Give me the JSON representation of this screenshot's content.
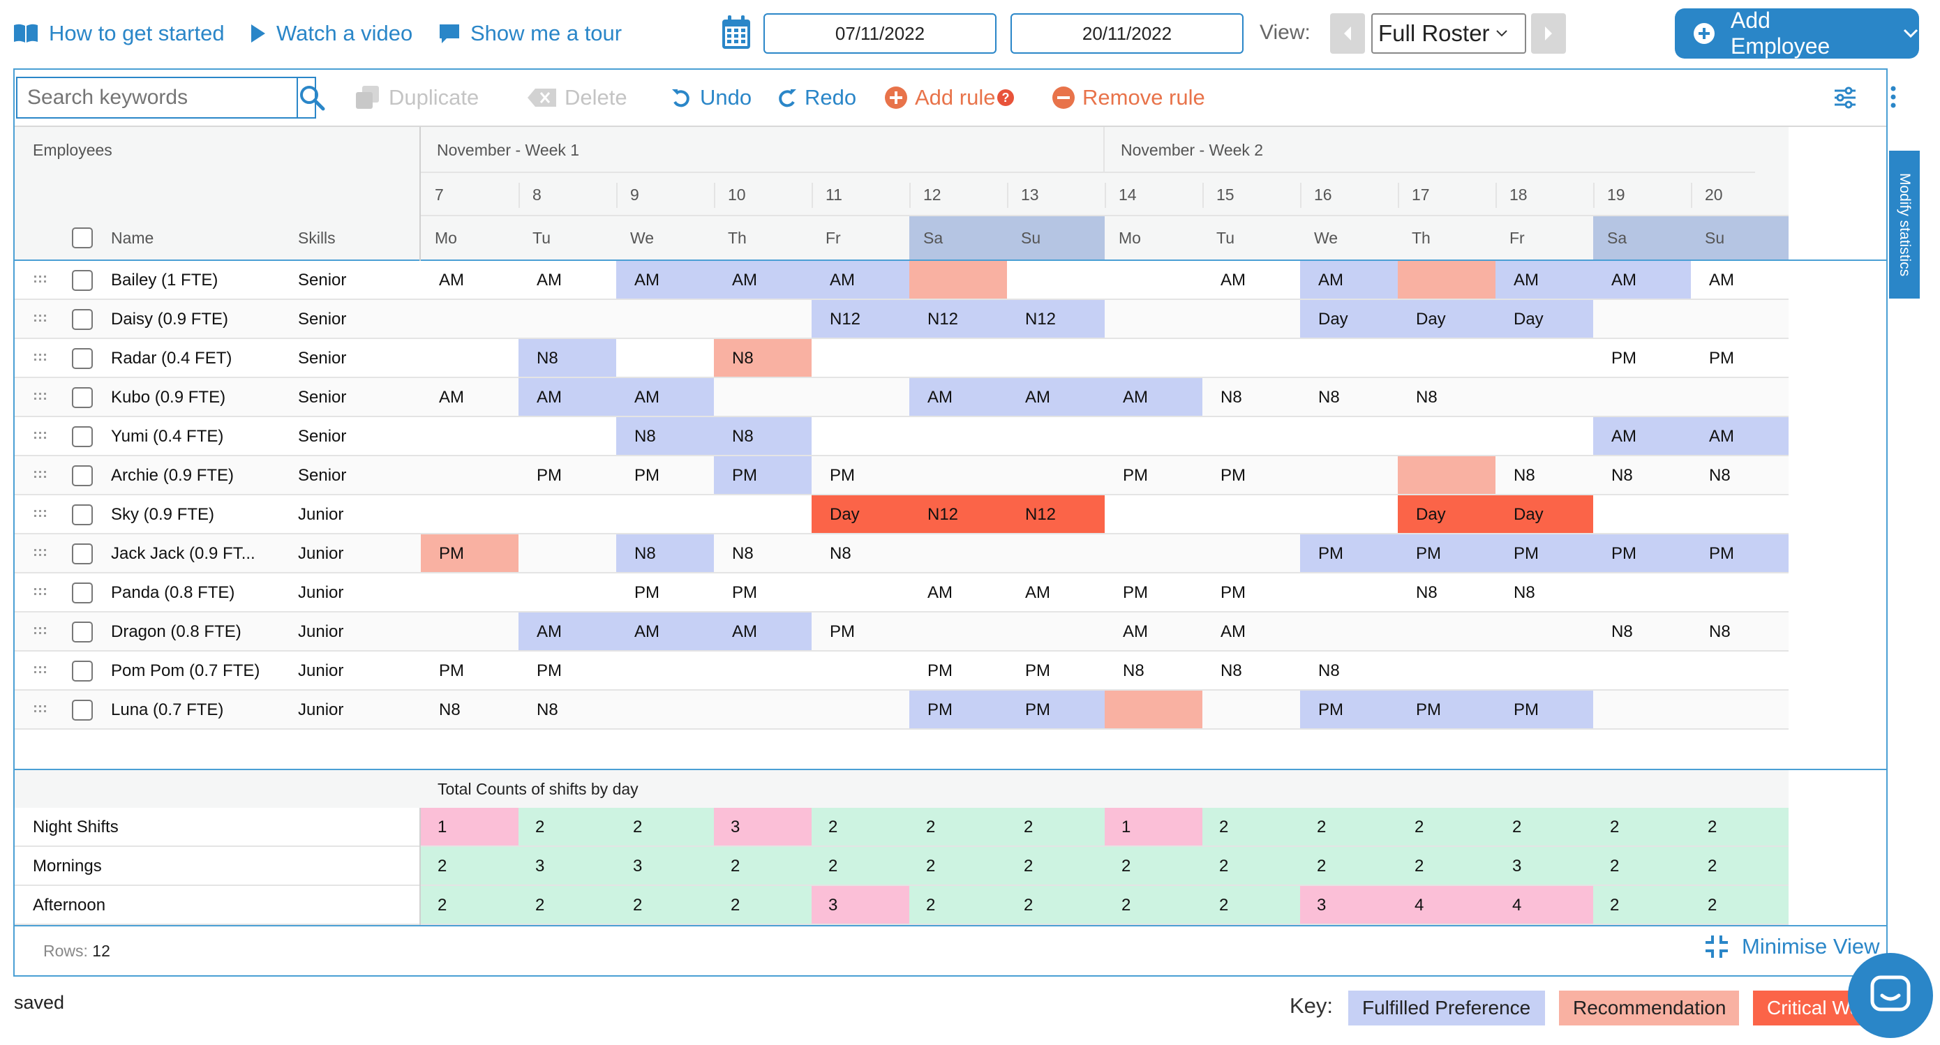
{
  "top_links": [
    {
      "label": "How to get started",
      "icon": "book-icon"
    },
    {
      "label": "Watch a video",
      "icon": "play-icon"
    },
    {
      "label": "Show me a tour",
      "icon": "chat-bubble-icon"
    }
  ],
  "date_range": {
    "start": "07/11/2022",
    "end": "20/11/2022"
  },
  "view": {
    "label": "View:",
    "selected": "Full Roster"
  },
  "add_employee_label": "Add Employee",
  "toolbar": {
    "search_placeholder": "Search keywords",
    "duplicate": "Duplicate",
    "delete": "Delete",
    "undo": "Undo",
    "redo": "Redo",
    "add_rule": "Add rule",
    "remove_rule": "Remove rule"
  },
  "grid": {
    "employees_header": "Employees",
    "name_header": "Name",
    "skills_header": "Skills",
    "weeks": [
      "November - Week 1",
      "November - Week 2"
    ],
    "days": [
      {
        "date": "7",
        "dow": "Mo",
        "weekend": false
      },
      {
        "date": "8",
        "dow": "Tu",
        "weekend": false
      },
      {
        "date": "9",
        "dow": "We",
        "weekend": false
      },
      {
        "date": "10",
        "dow": "Th",
        "weekend": false
      },
      {
        "date": "11",
        "dow": "Fr",
        "weekend": false
      },
      {
        "date": "12",
        "dow": "Sa",
        "weekend": true
      },
      {
        "date": "13",
        "dow": "Su",
        "weekend": true
      },
      {
        "date": "14",
        "dow": "Mo",
        "weekend": false
      },
      {
        "date": "15",
        "dow": "Tu",
        "weekend": false
      },
      {
        "date": "16",
        "dow": "We",
        "weekend": false
      },
      {
        "date": "17",
        "dow": "Th",
        "weekend": false
      },
      {
        "date": "18",
        "dow": "Fr",
        "weekend": false
      },
      {
        "date": "19",
        "dow": "Sa",
        "weekend": true
      },
      {
        "date": "20",
        "dow": "Su",
        "weekend": true
      }
    ],
    "rows": [
      {
        "name": "Bailey (1 FTE)",
        "skill": "Senior",
        "cells": [
          [
            "AM",
            ""
          ],
          [
            "AM",
            ""
          ],
          [
            "AM",
            "f"
          ],
          [
            "AM",
            "f"
          ],
          [
            "AM",
            "f"
          ],
          [
            "",
            "r"
          ],
          [
            "",
            ""
          ],
          [
            "",
            ""
          ],
          [
            "AM",
            ""
          ],
          [
            "AM",
            "f"
          ],
          [
            "",
            "r"
          ],
          [
            "AM",
            "f"
          ],
          [
            "AM",
            "f"
          ],
          [
            "AM",
            ""
          ]
        ]
      },
      {
        "name": "Daisy (0.9 FTE)",
        "skill": "Senior",
        "cells": [
          [
            "",
            ""
          ],
          [
            "",
            ""
          ],
          [
            "",
            ""
          ],
          [
            "",
            ""
          ],
          [
            "N12",
            "f"
          ],
          [
            "N12",
            "f"
          ],
          [
            "N12",
            "f"
          ],
          [
            "",
            ""
          ],
          [
            "",
            ""
          ],
          [
            "Day",
            "f"
          ],
          [
            "Day",
            "f"
          ],
          [
            "Day",
            "f"
          ],
          [
            "",
            ""
          ],
          [
            "",
            ""
          ]
        ]
      },
      {
        "name": "Radar (0.4 FET)",
        "skill": "Senior",
        "cells": [
          [
            "",
            ""
          ],
          [
            "N8",
            "f"
          ],
          [
            "",
            ""
          ],
          [
            "N8",
            "r"
          ],
          [
            "",
            ""
          ],
          [
            "",
            ""
          ],
          [
            "",
            ""
          ],
          [
            "",
            ""
          ],
          [
            "",
            ""
          ],
          [
            "",
            ""
          ],
          [
            "",
            ""
          ],
          [
            "",
            ""
          ],
          [
            "PM",
            ""
          ],
          [
            "PM",
            ""
          ]
        ]
      },
      {
        "name": "Kubo (0.9 FTE)",
        "skill": "Senior",
        "cells": [
          [
            "AM",
            ""
          ],
          [
            "AM",
            "f"
          ],
          [
            "AM",
            "f"
          ],
          [
            "",
            ""
          ],
          [
            "",
            ""
          ],
          [
            "AM",
            "f"
          ],
          [
            "AM",
            "f"
          ],
          [
            "AM",
            "f"
          ],
          [
            "N8",
            ""
          ],
          [
            "N8",
            ""
          ],
          [
            "N8",
            ""
          ],
          [
            "",
            ""
          ],
          [
            "",
            ""
          ],
          [
            "",
            ""
          ]
        ]
      },
      {
        "name": "Yumi (0.4 FTE)",
        "skill": "Senior",
        "cells": [
          [
            "",
            ""
          ],
          [
            "",
            ""
          ],
          [
            "N8",
            "f"
          ],
          [
            "N8",
            "f"
          ],
          [
            "",
            ""
          ],
          [
            "",
            ""
          ],
          [
            "",
            ""
          ],
          [
            "",
            ""
          ],
          [
            "",
            ""
          ],
          [
            "",
            ""
          ],
          [
            "",
            ""
          ],
          [
            "",
            ""
          ],
          [
            "AM",
            "f"
          ],
          [
            "AM",
            "f"
          ]
        ]
      },
      {
        "name": "Archie (0.9 FTE)",
        "skill": "Senior",
        "cells": [
          [
            "",
            ""
          ],
          [
            "PM",
            ""
          ],
          [
            "PM",
            ""
          ],
          [
            "PM",
            "f"
          ],
          [
            "PM",
            ""
          ],
          [
            "",
            ""
          ],
          [
            "",
            ""
          ],
          [
            "PM",
            ""
          ],
          [
            "PM",
            ""
          ],
          [
            "",
            ""
          ],
          [
            "",
            "r"
          ],
          [
            "N8",
            ""
          ],
          [
            "N8",
            ""
          ],
          [
            "N8",
            ""
          ]
        ]
      },
      {
        "name": "Sky (0.9 FTE)",
        "skill": "Junior",
        "cells": [
          [
            "",
            ""
          ],
          [
            "",
            ""
          ],
          [
            "",
            ""
          ],
          [
            "",
            ""
          ],
          [
            "Day",
            "c"
          ],
          [
            "N12",
            "c"
          ],
          [
            "N12",
            "c"
          ],
          [
            "",
            ""
          ],
          [
            "",
            ""
          ],
          [
            "",
            ""
          ],
          [
            "Day",
            "c"
          ],
          [
            "Day",
            "c"
          ],
          [
            "",
            ""
          ],
          [
            "",
            ""
          ]
        ]
      },
      {
        "name": "Jack Jack (0.9 FT...",
        "skill": "Junior",
        "cells": [
          [
            "PM",
            "r"
          ],
          [
            "",
            ""
          ],
          [
            "N8",
            "f"
          ],
          [
            "N8",
            ""
          ],
          [
            "N8",
            ""
          ],
          [
            "",
            ""
          ],
          [
            "",
            ""
          ],
          [
            "",
            ""
          ],
          [
            "",
            ""
          ],
          [
            "PM",
            "f"
          ],
          [
            "PM",
            "f"
          ],
          [
            "PM",
            "f"
          ],
          [
            "PM",
            "f"
          ],
          [
            "PM",
            "f"
          ]
        ]
      },
      {
        "name": "Panda (0.8 FTE)",
        "skill": "Junior",
        "cells": [
          [
            "",
            ""
          ],
          [
            "",
            ""
          ],
          [
            "PM",
            ""
          ],
          [
            "PM",
            ""
          ],
          [
            "",
            ""
          ],
          [
            "AM",
            ""
          ],
          [
            "AM",
            ""
          ],
          [
            "PM",
            ""
          ],
          [
            "PM",
            ""
          ],
          [
            "",
            ""
          ],
          [
            "N8",
            ""
          ],
          [
            "N8",
            ""
          ],
          [
            "",
            ""
          ],
          [
            "",
            ""
          ]
        ]
      },
      {
        "name": "Dragon (0.8 FTE)",
        "skill": "Junior",
        "cells": [
          [
            "",
            ""
          ],
          [
            "AM",
            "f"
          ],
          [
            "AM",
            "f"
          ],
          [
            "AM",
            "f"
          ],
          [
            "PM",
            ""
          ],
          [
            "",
            ""
          ],
          [
            "",
            ""
          ],
          [
            "AM",
            ""
          ],
          [
            "AM",
            ""
          ],
          [
            "",
            ""
          ],
          [
            "",
            ""
          ],
          [
            "",
            ""
          ],
          [
            "N8",
            ""
          ],
          [
            "N8",
            ""
          ]
        ]
      },
      {
        "name": "Pom Pom (0.7 FTE)",
        "skill": "Junior",
        "cells": [
          [
            "PM",
            ""
          ],
          [
            "PM",
            ""
          ],
          [
            "",
            ""
          ],
          [
            "",
            ""
          ],
          [
            "",
            ""
          ],
          [
            "PM",
            ""
          ],
          [
            "PM",
            ""
          ],
          [
            "N8",
            ""
          ],
          [
            "N8",
            ""
          ],
          [
            "N8",
            ""
          ],
          [
            "",
            ""
          ],
          [
            "",
            ""
          ],
          [
            "",
            ""
          ],
          [
            "",
            ""
          ]
        ]
      },
      {
        "name": "Luna (0.7 FTE)",
        "skill": "Junior",
        "cells": [
          [
            "N8",
            ""
          ],
          [
            "N8",
            ""
          ],
          [
            "",
            ""
          ],
          [
            "",
            ""
          ],
          [
            "",
            ""
          ],
          [
            "PM",
            "f"
          ],
          [
            "PM",
            "f"
          ],
          [
            "",
            "r"
          ],
          [
            "",
            ""
          ],
          [
            "PM",
            "f"
          ],
          [
            "PM",
            "f"
          ],
          [
            "PM",
            "f"
          ],
          [
            "",
            ""
          ],
          [
            "",
            ""
          ]
        ]
      }
    ]
  },
  "totals": {
    "title": "Total Counts of shifts by day",
    "rows": [
      {
        "label": "Night Shifts",
        "values": [
          1,
          2,
          2,
          3,
          2,
          2,
          2,
          1,
          2,
          2,
          2,
          2,
          2,
          2
        ],
        "flags": [
          1,
          0,
          0,
          1,
          0,
          0,
          0,
          1,
          0,
          0,
          0,
          0,
          0,
          0
        ]
      },
      {
        "label": "Mornings",
        "values": [
          2,
          3,
          3,
          2,
          2,
          2,
          2,
          2,
          2,
          2,
          2,
          3,
          2,
          2
        ],
        "flags": [
          0,
          0,
          0,
          0,
          0,
          0,
          0,
          0,
          0,
          0,
          0,
          0,
          0,
          0
        ]
      },
      {
        "label": "Afternoon",
        "values": [
          2,
          2,
          2,
          2,
          3,
          2,
          2,
          2,
          2,
          3,
          4,
          4,
          2,
          2
        ],
        "flags": [
          0,
          0,
          0,
          0,
          1,
          0,
          0,
          0,
          0,
          1,
          1,
          1,
          0,
          0
        ]
      }
    ]
  },
  "footer": {
    "rows_label": "Rows:",
    "rows_count": "12",
    "minimise": "Minimise View"
  },
  "side_tab": "Modify statistics",
  "status": "saved",
  "key": {
    "label": "Key:",
    "items": [
      {
        "label": "Fulfilled Preference",
        "color": "#c6d0f5"
      },
      {
        "label": "Recommendation",
        "color": "#f9b1a2"
      },
      {
        "label": "Critical Warning",
        "color": "#fb6448"
      }
    ]
  },
  "colors": {
    "accent": "#2a86c8",
    "fulfilled": "#c6d0f5",
    "recommendation": "#f9b1a2",
    "critical": "#fb6448",
    "weekend_header": "#b5c5e3",
    "total_ok": "#cdf3e1",
    "total_flag": "#fbbfd7"
  }
}
